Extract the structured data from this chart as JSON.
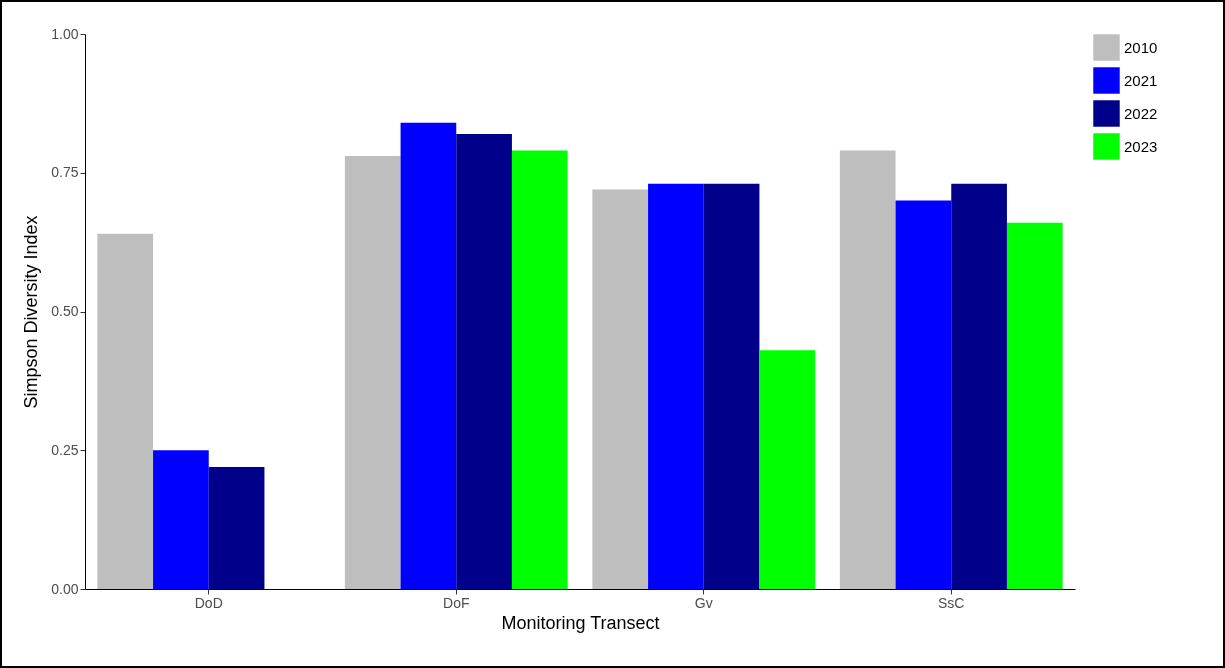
{
  "chart_data": {
    "type": "bar",
    "xlabel": "Monitoring Transect",
    "ylabel": "Simpson Diversity Index",
    "categories": [
      "DoD",
      "DoF",
      "Gv",
      "SsC"
    ],
    "series": [
      {
        "name": "2010",
        "color": "#bebebe",
        "values": [
          0.64,
          0.78,
          0.72,
          0.79
        ]
      },
      {
        "name": "2021",
        "color": "#0000ff",
        "values": [
          0.25,
          0.84,
          0.73,
          0.7
        ]
      },
      {
        "name": "2022",
        "color": "#00008b",
        "values": [
          0.22,
          0.82,
          0.73,
          0.73
        ]
      },
      {
        "name": "2023",
        "color": "#00ff00",
        "values": [
          null,
          0.79,
          0.43,
          0.66
        ]
      }
    ],
    "ylim": [
      0,
      1
    ],
    "yticks": [
      {
        "value": 0,
        "label": "0.00"
      },
      {
        "value": 0.25,
        "label": "0.25"
      },
      {
        "value": 0.5,
        "label": "0.50"
      },
      {
        "value": 0.75,
        "label": "0.75"
      },
      {
        "value": 1,
        "label": "1.00"
      }
    ],
    "grid": false,
    "legend": "right"
  }
}
